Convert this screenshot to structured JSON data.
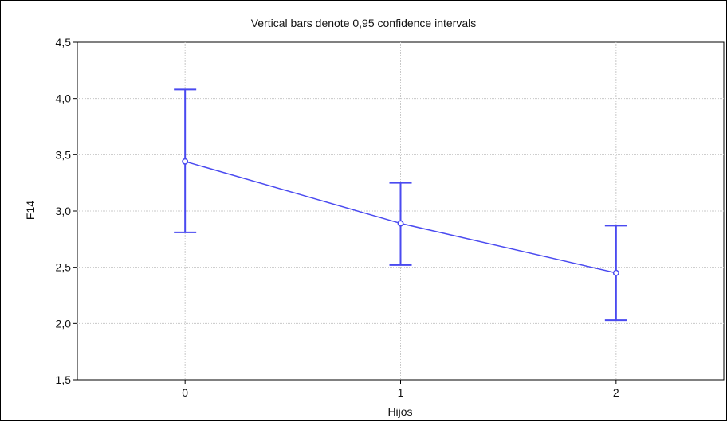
{
  "chart_data": {
    "type": "line",
    "title": "Vertical bars denote 0,95 confidence intervals",
    "xlabel": "Hijos",
    "ylabel": "F14",
    "categories": [
      "0",
      "1",
      "2"
    ],
    "x": [
      0,
      1,
      2
    ],
    "xlim": [
      -0.5,
      2.5
    ],
    "ylim": [
      1.5,
      4.5
    ],
    "yticks": [
      "1,5",
      "2,0",
      "2,5",
      "3,0",
      "3,5",
      "4,0",
      "4,5"
    ],
    "ytick_values": [
      1.5,
      2.0,
      2.5,
      3.0,
      3.5,
      4.0,
      4.5
    ],
    "grid": true,
    "series": [
      {
        "values": [
          3.44,
          2.89,
          2.45
        ],
        "ci_lower": [
          2.81,
          2.52,
          2.03
        ],
        "ci_upper": [
          4.08,
          3.25,
          2.87
        ]
      }
    ],
    "colors": {
      "series": "#4a4af0",
      "grid": "#c8c8c8",
      "axis": "#000000"
    }
  }
}
